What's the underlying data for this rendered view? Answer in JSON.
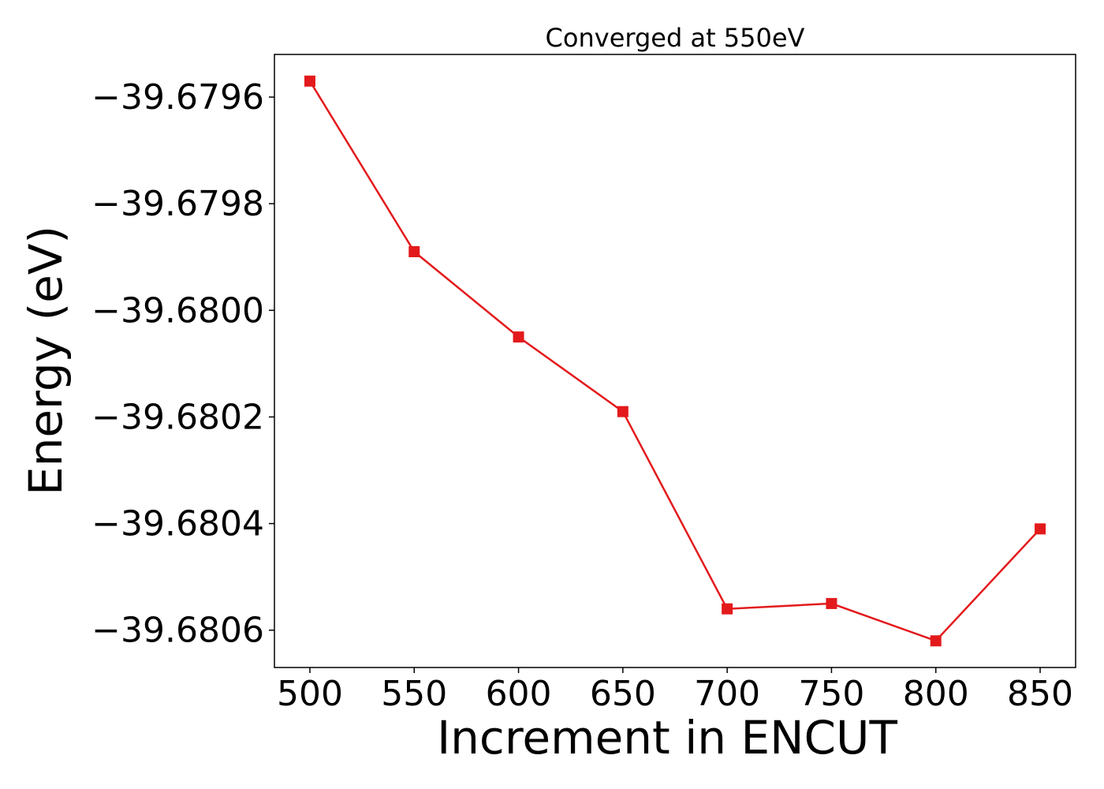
{
  "chart_data": {
    "type": "line",
    "title": "Converged at 550eV",
    "xlabel": "Increment in ENCUT",
    "ylabel": "Energy (eV)",
    "x": [
      500,
      550,
      600,
      650,
      700,
      750,
      800,
      850
    ],
    "series": [
      {
        "values": [
          -39.67957,
          -39.67989,
          -39.68005,
          -39.68019,
          -39.68056,
          -39.68055,
          -39.68062,
          -39.68041
        ],
        "color": "#e31a1c",
        "marker": "square"
      }
    ],
    "xticks": [
      500,
      550,
      600,
      650,
      700,
      750,
      800,
      850
    ],
    "xtick_labels": [
      "500",
      "550",
      "600",
      "650",
      700,
      "750",
      "800",
      "850"
    ],
    "yticks": [
      -39.6796,
      -39.6798,
      -39.68,
      -39.6802,
      -39.6804,
      -39.6806
    ],
    "ytick_labels": [
      "−39.6796",
      "−39.6798",
      "−39.6800",
      "−39.6802",
      "−39.6804",
      "−39.6806"
    ],
    "xlim": [
      483,
      867
    ],
    "ylim": [
      -39.68067,
      -39.67952
    ],
    "grid": false,
    "legend": "none"
  }
}
